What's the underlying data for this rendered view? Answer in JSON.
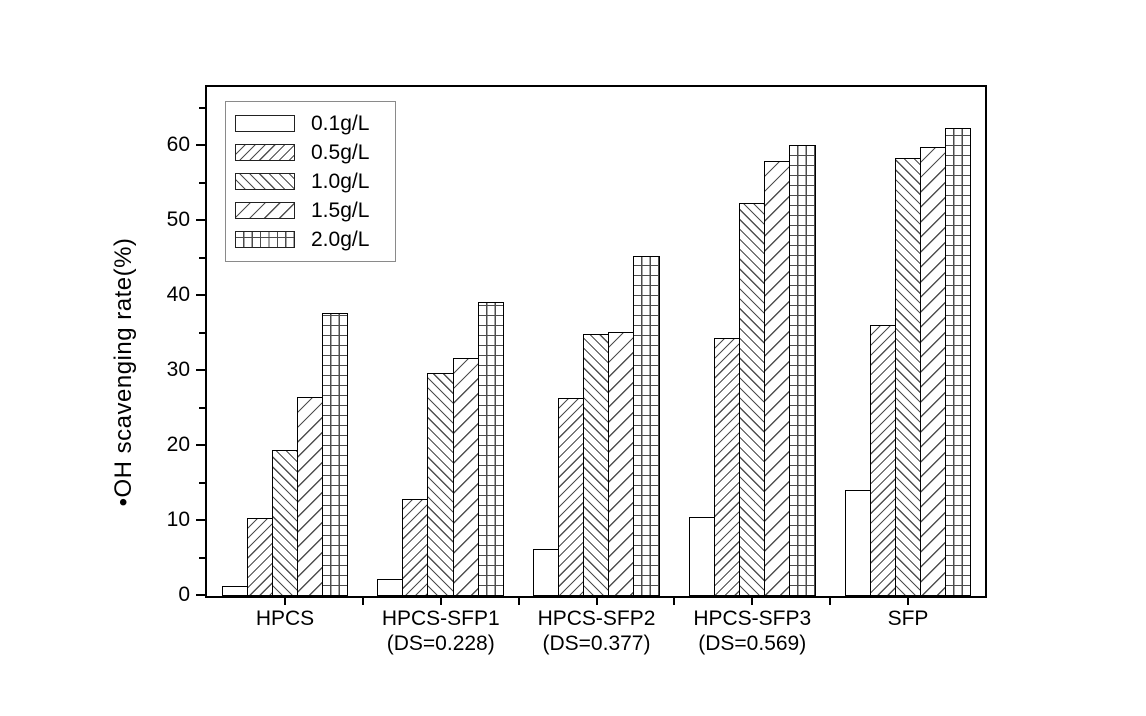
{
  "chart_data": {
    "type": "bar",
    "title": "",
    "xlabel": "",
    "ylabel": "•OH scavenging rate(%)",
    "ylim": [
      0,
      68
    ],
    "yticks_major": [
      0,
      10,
      20,
      30,
      40,
      50,
      60
    ],
    "yticks_minor": [
      5,
      15,
      25,
      35,
      45,
      55,
      65
    ],
    "grid": false,
    "legend_position": "upper-left-inside",
    "bar_outline_color": "#000000",
    "hatch_color": "#4d4d4d",
    "background_color": "#ffffff",
    "categories": [
      {
        "label": "HPCS",
        "sub": ""
      },
      {
        "label": "HPCS-SFP1",
        "sub": "(DS=0.228)"
      },
      {
        "label": "HPCS-SFP2",
        "sub": "(DS=0.377)"
      },
      {
        "label": "HPCS-SFP3",
        "sub": "(DS=0.569)"
      },
      {
        "label": "SFP",
        "sub": ""
      }
    ],
    "series": [
      {
        "name": "0.1g/L",
        "pattern": "none",
        "values": [
          1.3,
          2.3,
          6.3,
          10.5,
          14.2
        ]
      },
      {
        "name": "0.5g/L",
        "pattern": "diagonal-forward-dense",
        "values": [
          10.4,
          13.0,
          26.4,
          34.4,
          36.1
        ]
      },
      {
        "name": "1.0g/L",
        "pattern": "diagonal-back-dense",
        "values": [
          19.5,
          29.7,
          34.9,
          52.4,
          58.4
        ]
      },
      {
        "name": "1.5g/L",
        "pattern": "diagonal-forward-sparse",
        "values": [
          26.5,
          31.8,
          35.2,
          58.0,
          59.9
        ]
      },
      {
        "name": "2.0g/L",
        "pattern": "grid",
        "values": [
          37.8,
          39.2,
          45.4,
          60.1,
          62.4
        ]
      }
    ]
  }
}
